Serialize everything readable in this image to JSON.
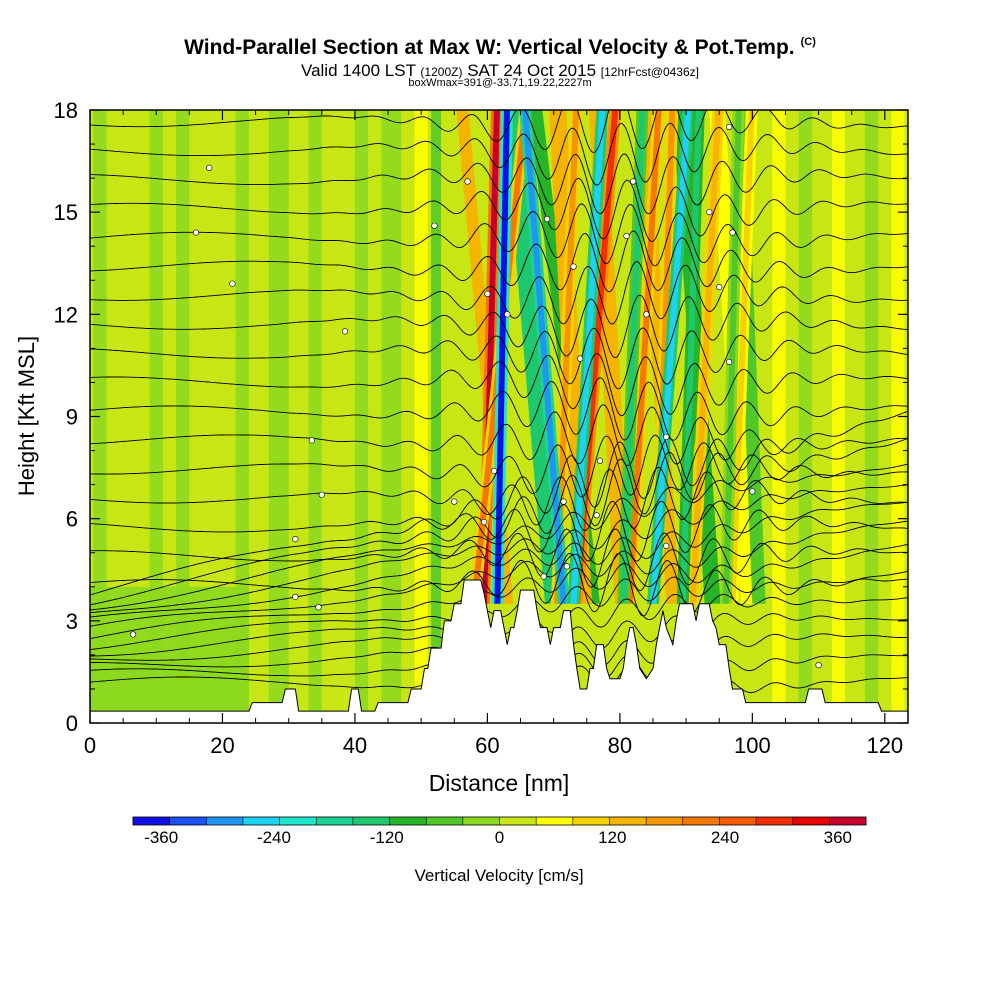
{
  "title": {
    "main": "Wind-Parallel Section at Max W: Vertical Velocity & Pot.Temp.",
    "copyright": "(C)",
    "valid_a": "Valid 1400 LST",
    "valid_z": "(1200Z)",
    "valid_b": "SAT 24 Oct 2015",
    "fcst": "[12hrFcst@0436z]",
    "box": "boxWmax=391@-33.71,19.22,2227m"
  },
  "chart_data": {
    "type": "heatmap",
    "xlabel": "Distance [nm]",
    "ylabel": "Height [Kft MSL]",
    "xlim": [
      0,
      123.5
    ],
    "ylim": [
      0,
      18
    ],
    "xticks": [
      "0",
      "20",
      "40",
      "60",
      "80",
      "100",
      "120"
    ],
    "yticks": [
      "0",
      "3",
      "6",
      "9",
      "12",
      "15",
      "18"
    ],
    "colorbar": {
      "label": "Vertical Velocity [cm/s]",
      "range": [
        -390,
        390
      ],
      "ticks": [
        "-360",
        "-240",
        "-120",
        "0",
        "120",
        "240",
        "360"
      ],
      "colors": [
        "#1010e6",
        "#1c52f2",
        "#1e96f2",
        "#1ed2f2",
        "#1ee6c8",
        "#1ed296",
        "#1ec86e",
        "#28b428",
        "#50c82a",
        "#8cd81e",
        "#c8e614",
        "#ffff00",
        "#f6d200",
        "#f5b400",
        "#f59600",
        "#f57800",
        "#f55a00",
        "#f52d00",
        "#e60000",
        "#c8002d"
      ]
    },
    "updrafts": [
      {
        "x_top": 61.5,
        "x_bottom": 59.5,
        "w": 390
      },
      {
        "x_top": 66.0,
        "x_bottom": 58.0,
        "w": 210
      },
      {
        "x_top": 73.5,
        "x_bottom": 70.5,
        "w": 180
      },
      {
        "x_top": 79.5,
        "x_bottom": 73.5,
        "w": 300
      },
      {
        "x_top": 86.0,
        "x_bottom": 81.5,
        "w": 210
      },
      {
        "x_top": 88.0,
        "x_bottom": 85.5,
        "w": 180
      },
      {
        "x_top": 95.0,
        "x_bottom": 91.0,
        "w": 150
      },
      {
        "x_top": 100.0,
        "x_bottom": 97.0,
        "w": 90
      }
    ],
    "downdrafts": [
      {
        "x_top": 63.0,
        "x_bottom": 61.5,
        "w": -360
      },
      {
        "x_top": 65.5,
        "x_bottom": 71.5,
        "w": -300
      },
      {
        "x_top": 77.5,
        "x_bottom": 73.0,
        "w": -240
      },
      {
        "x_top": 83.5,
        "x_bottom": 80.5,
        "w": -120
      },
      {
        "x_top": 90.5,
        "x_bottom": 85.0,
        "w": -270
      },
      {
        "x_top": 92.0,
        "x_bottom": 89.5,
        "w": -150
      },
      {
        "x_top": 98.0,
        "x_bottom": 96.0,
        "w": -60
      }
    ],
    "terrain": [
      [
        0,
        0.35
      ],
      [
        24,
        0.35
      ],
      [
        24.5,
        0.6
      ],
      [
        29,
        0.6
      ],
      [
        29.5,
        1.0
      ],
      [
        31,
        1.0
      ],
      [
        31.5,
        0.35
      ],
      [
        39,
        0.35
      ],
      [
        39.5,
        1.0
      ],
      [
        40.5,
        1.0
      ],
      [
        41,
        0.35
      ],
      [
        43,
        0.35
      ],
      [
        43.5,
        0.6
      ],
      [
        48,
        0.6
      ],
      [
        48.5,
        1.0
      ],
      [
        50,
        1.0
      ],
      [
        50.5,
        1.6
      ],
      [
        51,
        1.6
      ],
      [
        51.5,
        2.2
      ],
      [
        53,
        2.2
      ],
      [
        53.5,
        3.0
      ],
      [
        54.5,
        3.0
      ],
      [
        55,
        3.5
      ],
      [
        56,
        3.5
      ],
      [
        56.5,
        4.2
      ],
      [
        59,
        4.2
      ],
      [
        59.5,
        3.8
      ],
      [
        60,
        3.3
      ],
      [
        60.5,
        2.8
      ],
      [
        61,
        3.3
      ],
      [
        62,
        3.3
      ],
      [
        62.5,
        2.8
      ],
      [
        63,
        2.3
      ],
      [
        63.5,
        2.8
      ],
      [
        64,
        2.8
      ],
      [
        64.5,
        3.3
      ],
      [
        65,
        3.9
      ],
      [
        67,
        3.9
      ],
      [
        67.5,
        3.3
      ],
      [
        68,
        2.8
      ],
      [
        69,
        2.8
      ],
      [
        69.5,
        2.3
      ],
      [
        70,
        2.8
      ],
      [
        71,
        2.8
      ],
      [
        71.5,
        3.3
      ],
      [
        72.5,
        3.3
      ],
      [
        73,
        2.3
      ],
      [
        73.5,
        1.6
      ],
      [
        74,
        1.0
      ],
      [
        75,
        1.0
      ],
      [
        75.5,
        1.6
      ],
      [
        76,
        1.6
      ],
      [
        76.5,
        2.3
      ],
      [
        77.5,
        2.3
      ],
      [
        78,
        1.6
      ],
      [
        78.5,
        1.3
      ],
      [
        80,
        1.3
      ],
      [
        80.5,
        1.6
      ],
      [
        81,
        2.3
      ],
      [
        81.5,
        2.8
      ],
      [
        82,
        2.8
      ],
      [
        82.5,
        2.3
      ],
      [
        83,
        1.6
      ],
      [
        84,
        1.3
      ],
      [
        85,
        1.6
      ],
      [
        85.5,
        2.3
      ],
      [
        86,
        2.8
      ],
      [
        86.5,
        3.3
      ],
      [
        87,
        2.8
      ],
      [
        88,
        2.3
      ],
      [
        88.5,
        3.0
      ],
      [
        89,
        3.5
      ],
      [
        91,
        3.5
      ],
      [
        91.5,
        3.0
      ],
      [
        92,
        3.5
      ],
      [
        93.5,
        3.5
      ],
      [
        94,
        3.0
      ],
      [
        94.5,
        2.8
      ],
      [
        95,
        2.3
      ],
      [
        96,
        2.3
      ],
      [
        96.5,
        1.6
      ],
      [
        97,
        1.0
      ],
      [
        98.5,
        1.0
      ],
      [
        99,
        0.6
      ],
      [
        108,
        0.6
      ],
      [
        108.5,
        1.0
      ],
      [
        110.5,
        1.0
      ],
      [
        111,
        0.6
      ],
      [
        119,
        0.6
      ],
      [
        119.5,
        0.35
      ],
      [
        123.5,
        0.35
      ]
    ],
    "theta_labels": [
      {
        "x": 18,
        "y": 16.3,
        "text": "."
      },
      {
        "x": 16,
        "y": 14.4,
        "text": "."
      },
      {
        "x": 21.5,
        "y": 12.9,
        "text": "."
      },
      {
        "x": 38.5,
        "y": 11.5,
        "text": "."
      },
      {
        "x": 33.5,
        "y": 8.3,
        "text": "."
      },
      {
        "x": 35,
        "y": 6.7,
        "text": "."
      },
      {
        "x": 31,
        "y": 5.4,
        "text": "."
      },
      {
        "x": 31,
        "y": 3.7,
        "text": "."
      },
      {
        "x": 34.5,
        "y": 3.4,
        "text": "."
      },
      {
        "x": 6.5,
        "y": 2.6,
        "text": "."
      },
      {
        "x": 52,
        "y": 14.6,
        "text": "."
      },
      {
        "x": 57,
        "y": 15.9,
        "text": "."
      },
      {
        "x": 60,
        "y": 12.6,
        "text": "."
      },
      {
        "x": 63,
        "y": 12.0,
        "text": "."
      },
      {
        "x": 69,
        "y": 14.8,
        "text": "."
      },
      {
        "x": 73,
        "y": 13.4,
        "text": "."
      },
      {
        "x": 82,
        "y": 15.9,
        "text": "."
      },
      {
        "x": 81,
        "y": 14.3,
        "text": "."
      },
      {
        "x": 84,
        "y": 12.0,
        "text": "."
      },
      {
        "x": 93.5,
        "y": 15.0,
        "text": "."
      },
      {
        "x": 96.5,
        "y": 17.5,
        "text": "."
      },
      {
        "x": 97,
        "y": 14.4,
        "text": "."
      },
      {
        "x": 95,
        "y": 12.8,
        "text": "."
      },
      {
        "x": 96.5,
        "y": 10.6,
        "text": "."
      },
      {
        "x": 74,
        "y": 10.7,
        "text": "."
      },
      {
        "x": 87,
        "y": 8.4,
        "text": "."
      },
      {
        "x": 77,
        "y": 7.7,
        "text": "."
      },
      {
        "x": 61,
        "y": 7.4,
        "text": "."
      },
      {
        "x": 55,
        "y": 6.5,
        "text": "."
      },
      {
        "x": 59.5,
        "y": 5.9,
        "text": "."
      },
      {
        "x": 71.5,
        "y": 6.5,
        "text": "."
      },
      {
        "x": 76.5,
        "y": 6.1,
        "text": "."
      },
      {
        "x": 87,
        "y": 5.2,
        "text": "."
      },
      {
        "x": 100,
        "y": 6.8,
        "text": "."
      },
      {
        "x": 68.5,
        "y": 4.3,
        "text": "."
      },
      {
        "x": 72,
        "y": 4.6,
        "text": "."
      },
      {
        "x": 110,
        "y": 1.7,
        "text": "."
      }
    ]
  }
}
